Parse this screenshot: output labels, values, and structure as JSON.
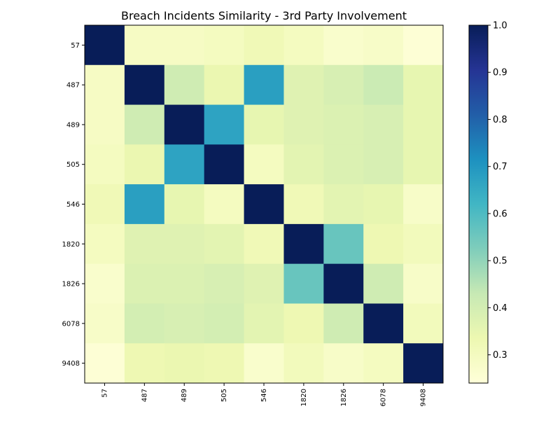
{
  "chart_data": {
    "type": "heatmap",
    "title": "Breach Incidents Similarity - 3rd Party Involvement",
    "xlabel": "",
    "ylabel": "",
    "labels": [
      "57",
      "487",
      "489",
      "505",
      "546",
      "1820",
      "1826",
      "6078",
      "9408"
    ],
    "values": [
      [
        1.0,
        0.29,
        0.29,
        0.3,
        0.32,
        0.3,
        0.27,
        0.28,
        0.25
      ],
      [
        0.29,
        1.0,
        0.41,
        0.34,
        0.68,
        0.37,
        0.39,
        0.42,
        0.35
      ],
      [
        0.29,
        0.41,
        1.0,
        0.67,
        0.35,
        0.37,
        0.38,
        0.39,
        0.35
      ],
      [
        0.3,
        0.34,
        0.67,
        1.0,
        0.3,
        0.36,
        0.38,
        0.39,
        0.35
      ],
      [
        0.32,
        0.68,
        0.35,
        0.3,
        1.0,
        0.32,
        0.36,
        0.35,
        0.28
      ],
      [
        0.3,
        0.37,
        0.37,
        0.36,
        0.32,
        1.0,
        0.56,
        0.33,
        0.31
      ],
      [
        0.27,
        0.38,
        0.38,
        0.39,
        0.37,
        0.56,
        1.0,
        0.41,
        0.28
      ],
      [
        0.28,
        0.4,
        0.39,
        0.4,
        0.36,
        0.33,
        0.41,
        1.0,
        0.31
      ],
      [
        0.25,
        0.33,
        0.34,
        0.33,
        0.27,
        0.31,
        0.28,
        0.3,
        1.0
      ]
    ],
    "colormap": "YlGnBu",
    "vmin": 0.24,
    "vmax": 1.0,
    "colorbar_ticks": [
      "0.3",
      "0.4",
      "0.5",
      "0.6",
      "0.7",
      "0.8",
      "0.9",
      "1.0"
    ],
    "colorbar_tick_values": [
      0.3,
      0.4,
      0.5,
      0.6,
      0.7,
      0.8,
      0.9,
      1.0
    ],
    "grid": false,
    "legend": "colorbar-right"
  }
}
